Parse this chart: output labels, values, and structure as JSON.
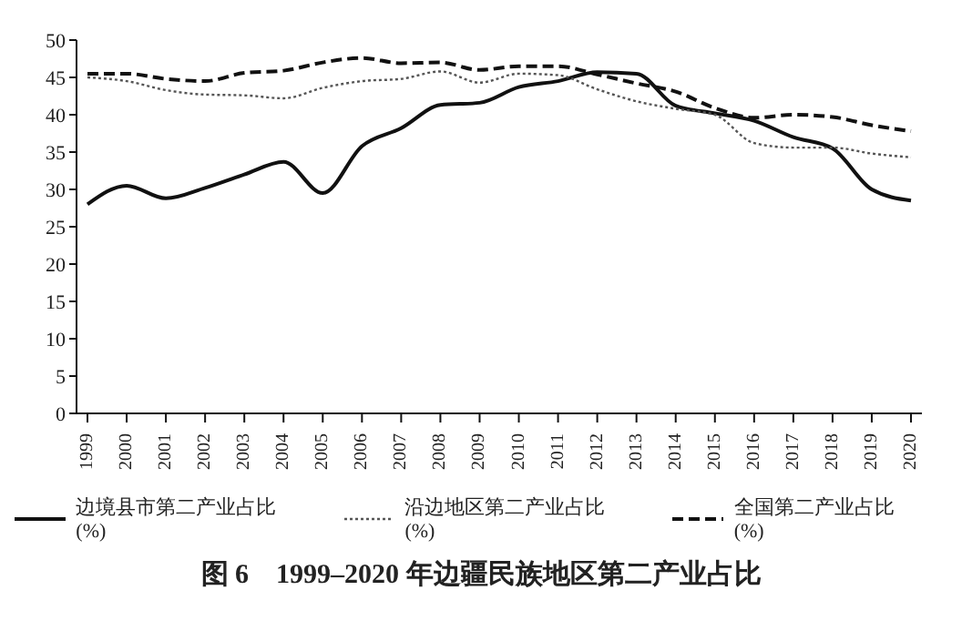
{
  "chart_data": {
    "type": "line",
    "title": "图 6　1999–2020 年边疆民族地区第二产业占比",
    "categories": [
      "1999",
      "2000",
      "2001",
      "2002",
      "2003",
      "2004",
      "2005",
      "2006",
      "2007",
      "2008",
      "2009",
      "2010",
      "2011",
      "2012",
      "2013",
      "2014",
      "2015",
      "2016",
      "2017",
      "2018",
      "2019",
      "2020"
    ],
    "series": [
      {
        "name": "边境县市第二产业占比(%)",
        "color": "#111111",
        "line_style": "solid",
        "values": [
          28,
          30.5,
          28.8,
          30.2,
          32,
          33.7,
          29.5,
          35.8,
          38.2,
          41.3,
          41.6,
          43.7,
          44.5,
          45.7,
          45.5,
          41.2,
          40.2,
          39.2,
          37,
          35.5,
          30,
          28.5
        ]
      },
      {
        "name": "沿边地区第二产业占比(%)",
        "color": "#555555",
        "line_style": "dotted",
        "values": [
          45,
          44.5,
          43.3,
          42.7,
          42.6,
          42.2,
          43.6,
          44.5,
          44.8,
          45.8,
          44.3,
          45.5,
          45.3,
          43.4,
          41.8,
          40.8,
          40,
          36.2,
          35.6,
          35.6,
          34.8,
          34.3
        ]
      },
      {
        "name": "全国第二产业占比(%)",
        "color": "#111111",
        "line_style": "dashed",
        "values": [
          45.5,
          45.5,
          44.8,
          44.5,
          45.6,
          45.9,
          47,
          47.6,
          46.9,
          47,
          46,
          46.5,
          46.5,
          45.4,
          44.2,
          43.1,
          40.9,
          39.6,
          40,
          39.7,
          38.6,
          37.8
        ]
      }
    ],
    "ylim": [
      0,
      50
    ],
    "yticks": [
      0,
      5,
      10,
      15,
      20,
      25,
      30,
      35,
      40,
      45,
      50
    ],
    "grid": false,
    "legend": "bottom",
    "marker": "none"
  }
}
